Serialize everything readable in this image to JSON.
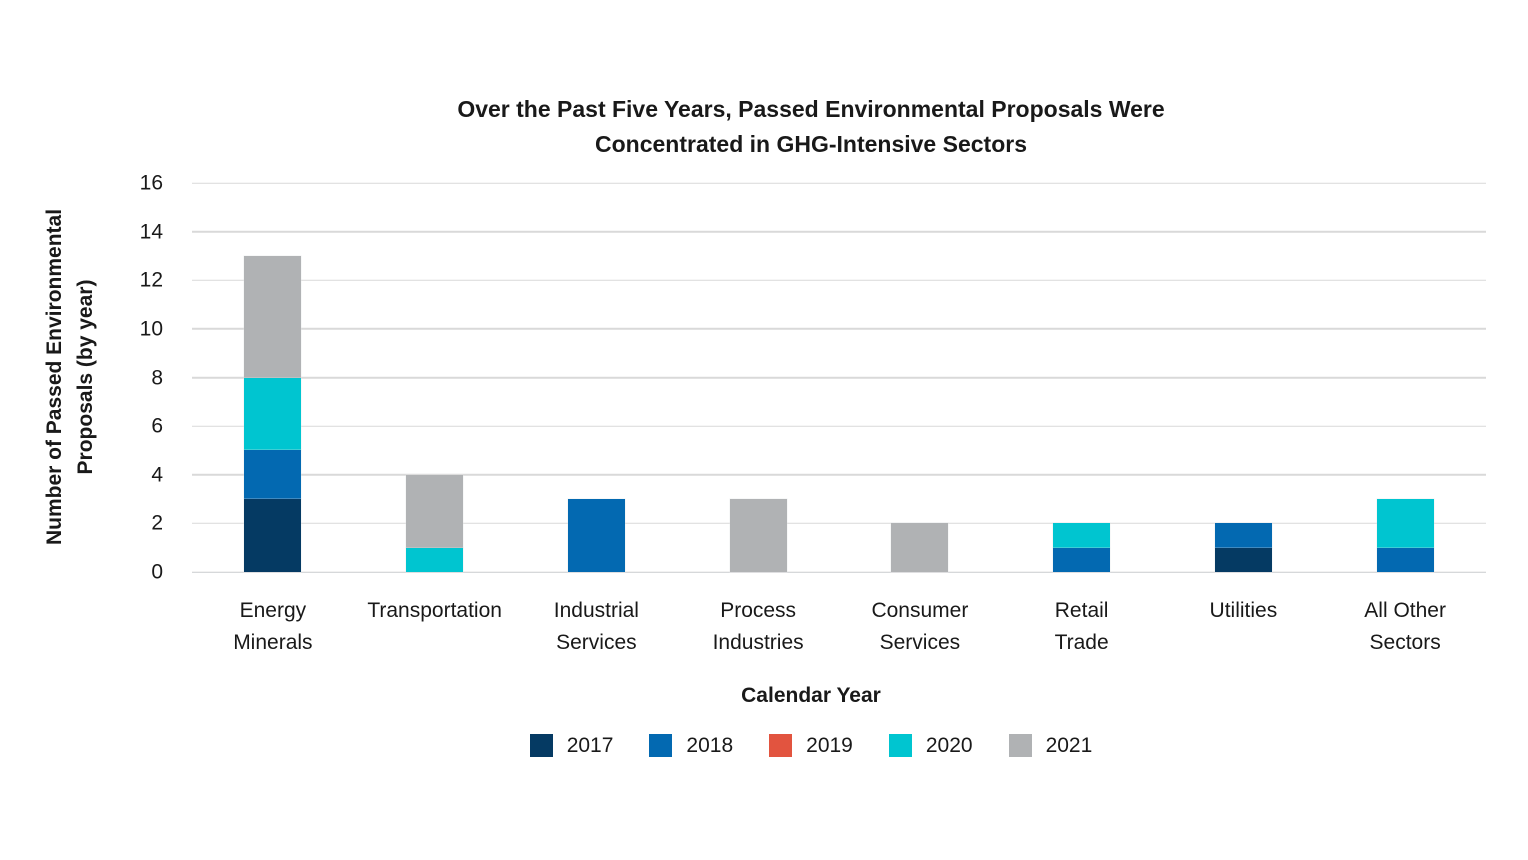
{
  "title": {
    "line1": "Over the Past Five Years, Passed Environmental Proposals Were",
    "line2": "Concentrated in GHG-Intensive Sectors"
  },
  "chart_data": {
    "type": "bar",
    "stacked": true,
    "title": "Over the Past Five Years, Passed Environmental Proposals Were Concentrated in GHG-Intensive Sectors",
    "xlabel": "Calendar Year",
    "ylabel": "Number of Passed Environmental Proposals (by year)",
    "ylabel_lines": [
      "Number of Passed Environmental",
      "Proposals (by year)"
    ],
    "ylim": [
      0,
      16
    ],
    "yticks": [
      0,
      2,
      4,
      6,
      8,
      10,
      12,
      14,
      16
    ],
    "grid": true,
    "legend_position": "bottom",
    "categories": [
      "Energy Minerals",
      "Transportation",
      "Industrial Services",
      "Process Industries",
      "Consumer Services",
      "Retail Trade",
      "Utilities",
      "All Other Sectors"
    ],
    "category_label_lines": [
      [
        "Energy",
        "Minerals"
      ],
      [
        "Transportation"
      ],
      [
        "Industrial",
        "Services"
      ],
      [
        "Process",
        "Industries"
      ],
      [
        "Consumer",
        "Services"
      ],
      [
        "Retail",
        "Trade"
      ],
      [
        "Utilities"
      ],
      [
        "All Other",
        "Sectors"
      ]
    ],
    "series": [
      {
        "name": "2017",
        "color": "#053a63",
        "values": [
          3,
          0,
          0,
          0,
          0,
          0,
          1,
          0
        ]
      },
      {
        "name": "2018",
        "color": "#0369b1",
        "values": [
          2,
          0,
          3,
          0,
          0,
          1,
          1,
          1
        ]
      },
      {
        "name": "2019",
        "color": "#e2543f",
        "values": [
          0,
          0,
          0,
          0,
          0,
          0,
          0,
          0
        ]
      },
      {
        "name": "2020",
        "color": "#00c5d0",
        "values": [
          3,
          1,
          0,
          0,
          0,
          1,
          0,
          2
        ]
      },
      {
        "name": "2021",
        "color": "#b0b2b4",
        "values": [
          5,
          3,
          0,
          3,
          2,
          0,
          0,
          0
        ]
      }
    ],
    "totals": [
      13,
      4,
      3,
      3,
      2,
      2,
      2,
      3
    ]
  },
  "colors": {
    "background": "#ffffff",
    "grid": "#d9d9d9",
    "axis_line": "#c9cbcd",
    "text": "#191919"
  }
}
